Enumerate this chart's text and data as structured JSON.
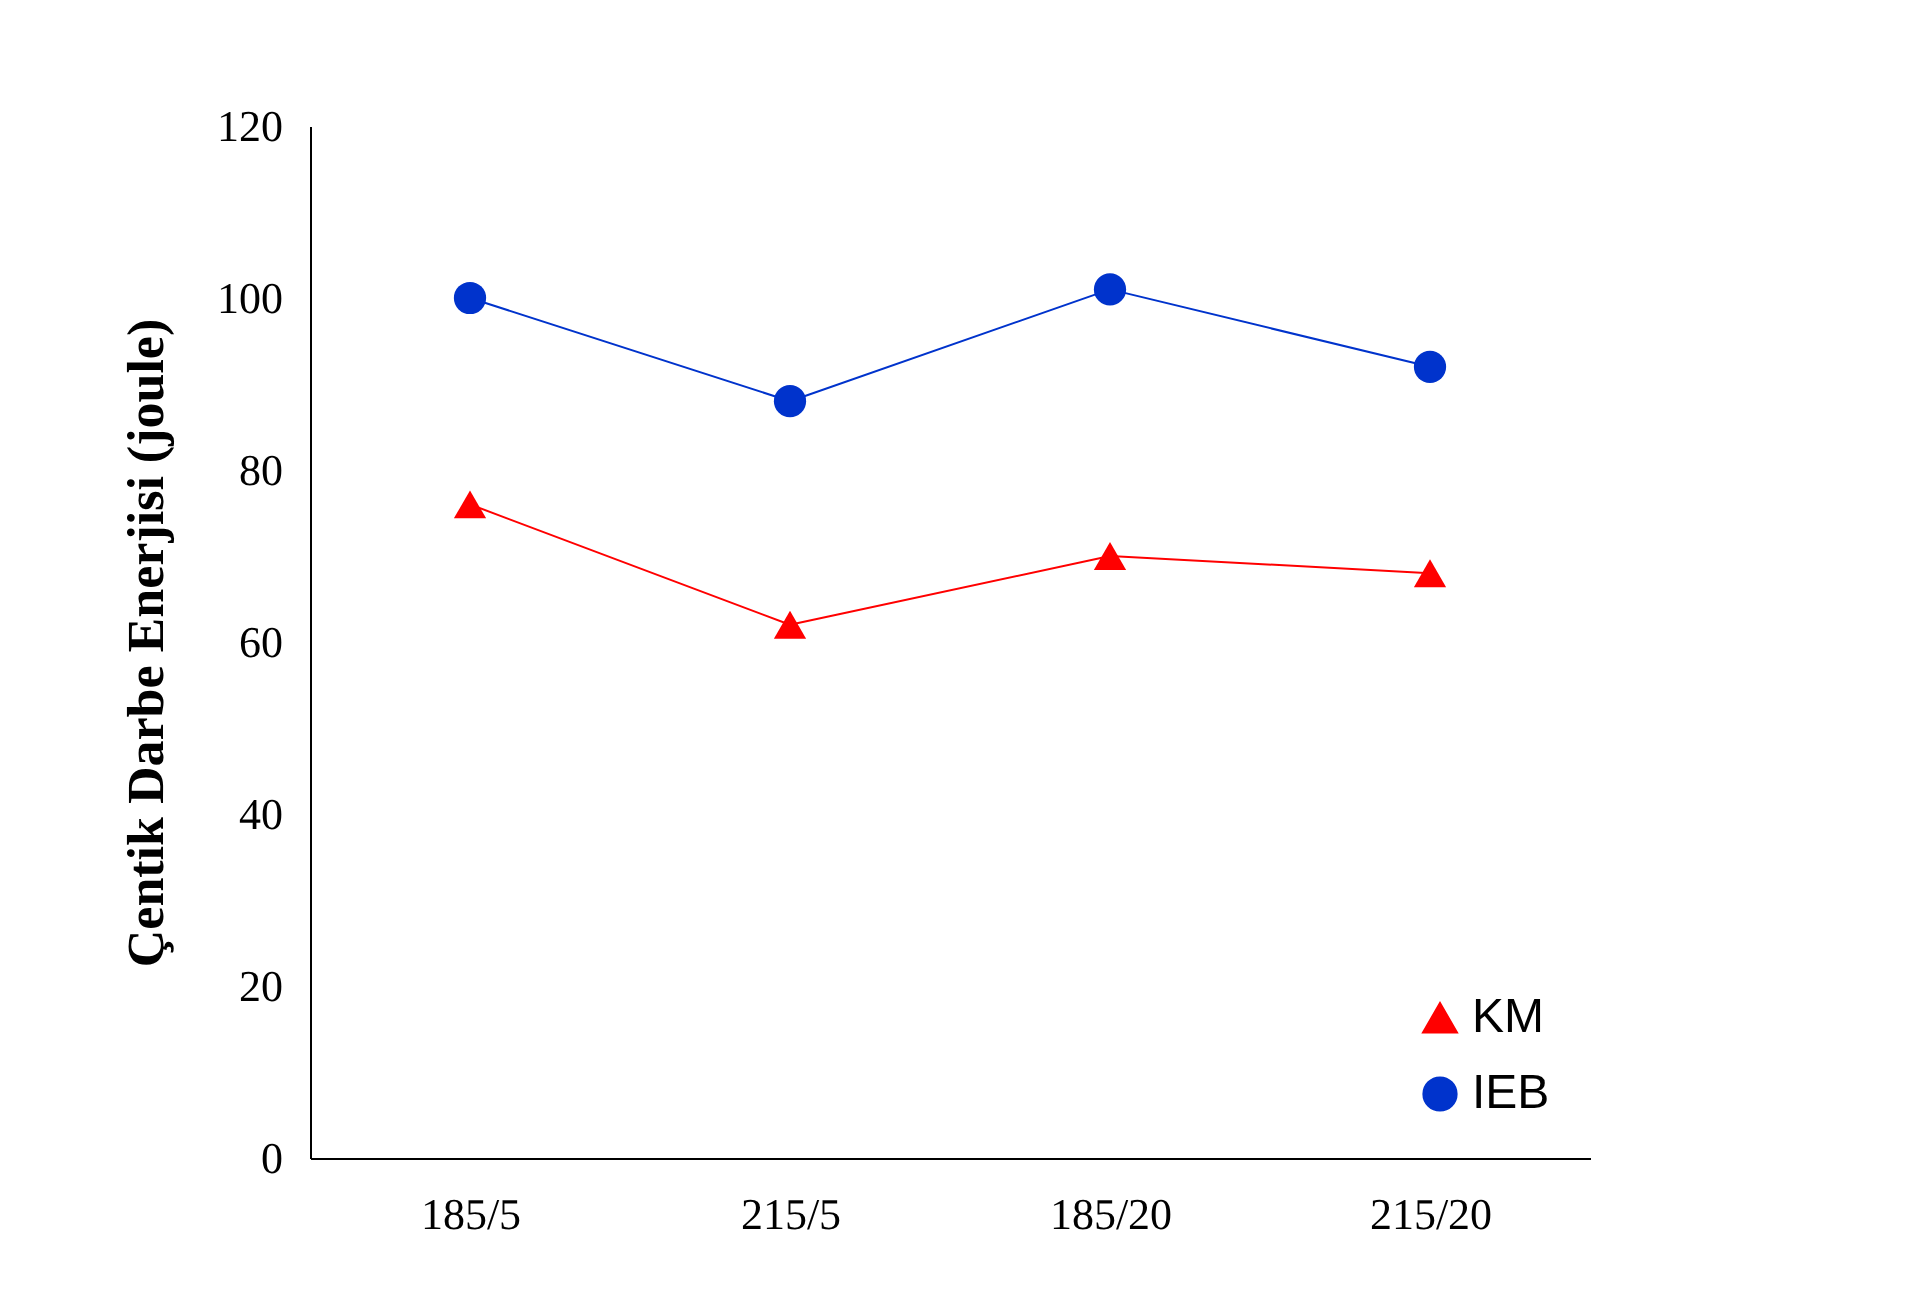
{
  "chart_data": {
    "type": "line",
    "ylabel": "Çentik Darbe Enerjisi (joule)",
    "categories": [
      "185/5",
      "215/5",
      "185/20",
      "215/20"
    ],
    "series": [
      {
        "name": "KM",
        "color": "#ff0000",
        "marker": "triangle",
        "values": [
          76,
          62,
          70,
          68
        ]
      },
      {
        "name": "IEB",
        "color": "#0033cc",
        "marker": "circle",
        "values": [
          100,
          88,
          101,
          92
        ]
      }
    ],
    "ylim": [
      0,
      120
    ],
    "yticks": [
      0,
      20,
      40,
      60,
      80,
      100,
      120
    ],
    "grid": false,
    "legend": "bottom right"
  }
}
